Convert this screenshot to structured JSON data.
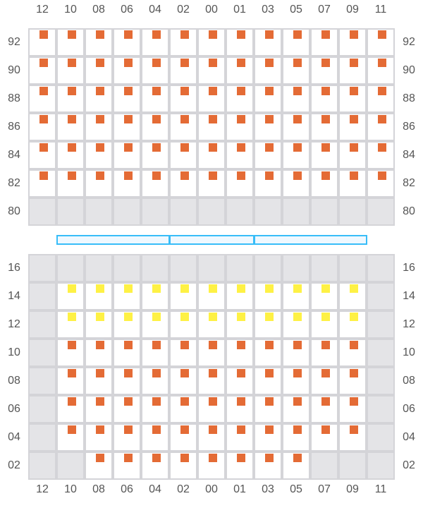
{
  "columns": [
    "12",
    "10",
    "08",
    "06",
    "04",
    "02",
    "00",
    "01",
    "03",
    "05",
    "07",
    "09",
    "11"
  ],
  "colors": {
    "occupied": "#e46b35",
    "highlighted": "#fef145",
    "blocked": "#e4e4e7",
    "grid": "#d4d4d8",
    "bar_border": "#38bdf8",
    "bar_fill": "#eff8ff"
  },
  "legend_states": {
    "o": "occupied",
    "y": "highlighted",
    "x": "blocked",
    "e": "empty"
  },
  "top_section": {
    "rows": [
      {
        "label": "92",
        "cells": "ooooooooooooo"
      },
      {
        "label": "90",
        "cells": "ooooooooooooo"
      },
      {
        "label": "88",
        "cells": "ooooooooooooo"
      },
      {
        "label": "86",
        "cells": "ooooooooooooo"
      },
      {
        "label": "84",
        "cells": "ooooooooooooo"
      },
      {
        "label": "82",
        "cells": "ooooooooooooo"
      },
      {
        "label": "80",
        "cells": "xxxxxxxxxxxxx"
      }
    ]
  },
  "divider_segments": 3,
  "bottom_section": {
    "rows": [
      {
        "label": "16",
        "cells": "xxxxxxxxxxxxx"
      },
      {
        "label": "14",
        "cells": "xyyyyyyyyyyyx"
      },
      {
        "label": "12",
        "cells": "xyyyyyyyyyyyx"
      },
      {
        "label": "10",
        "cells": "xooooooooooox"
      },
      {
        "label": "08",
        "cells": "xooooooooooox"
      },
      {
        "label": "06",
        "cells": "xooooooooooox"
      },
      {
        "label": "04",
        "cells": "xooooooooooox"
      },
      {
        "label": "02",
        "cells": "xxooooooooxxx"
      }
    ]
  }
}
